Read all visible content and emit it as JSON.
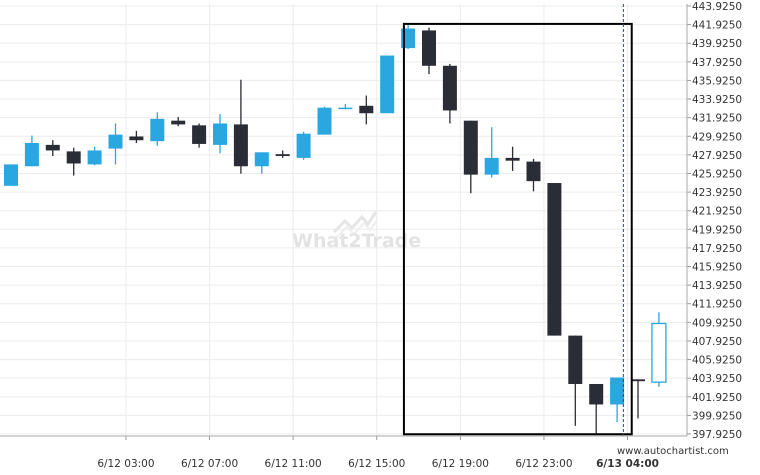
{
  "watermark": {
    "text": "What2Trade"
  },
  "credit": "www.autochartist.com",
  "colors": {
    "up": "#2aa7e0",
    "down": "#2b2d36",
    "box": "#000000",
    "grid": "#ececec",
    "dashed": "#2b4b6b"
  },
  "chart_data": {
    "type": "candlestick",
    "ylim": [
      397.925,
      443.925
    ],
    "y_ticks": [
      "443.9250",
      "441.9250",
      "439.9250",
      "437.9250",
      "435.9250",
      "433.9250",
      "431.9250",
      "429.9250",
      "427.9250",
      "425.9250",
      "423.9250",
      "421.9250",
      "419.9250",
      "417.9250",
      "415.9250",
      "413.9250",
      "411.9250",
      "409.9250",
      "407.9250",
      "405.9250",
      "403.9250",
      "401.9250",
      "399.9250",
      "397.9250"
    ],
    "x_ticks": [
      {
        "label": "6/12 03:00",
        "index": 5.5,
        "bold": false
      },
      {
        "label": "6/12 07:00",
        "index": 9.5,
        "bold": false
      },
      {
        "label": "6/12 11:00",
        "index": 13.5,
        "bold": false
      },
      {
        "label": "6/12 15:00",
        "index": 17.5,
        "bold": false
      },
      {
        "label": "6/12 19:00",
        "index": 21.5,
        "bold": false
      },
      {
        "label": "6/12 23:00",
        "index": 25.5,
        "bold": false
      },
      {
        "label": "6/13 04:00",
        "index": 29.5,
        "bold": true
      }
    ],
    "candles": [
      {
        "o": 424.6,
        "h": 426.9,
        "l": 424.6,
        "c": 426.9
      },
      {
        "o": 426.7,
        "h": 430.0,
        "l": 426.7,
        "c": 429.2
      },
      {
        "o": 429.0,
        "h": 429.5,
        "l": 427.8,
        "c": 428.4
      },
      {
        "o": 428.3,
        "h": 428.7,
        "l": 425.7,
        "c": 427.0
      },
      {
        "o": 426.9,
        "h": 428.8,
        "l": 426.8,
        "c": 428.4
      },
      {
        "o": 428.6,
        "h": 431.3,
        "l": 426.9,
        "c": 430.1
      },
      {
        "o": 429.9,
        "h": 430.5,
        "l": 429.2,
        "c": 429.5
      },
      {
        "o": 429.4,
        "h": 432.5,
        "l": 428.9,
        "c": 431.8
      },
      {
        "o": 431.6,
        "h": 432.0,
        "l": 431.0,
        "c": 431.2
      },
      {
        "o": 431.1,
        "h": 431.3,
        "l": 428.7,
        "c": 429.1
      },
      {
        "o": 429.0,
        "h": 432.3,
        "l": 428.1,
        "c": 431.3
      },
      {
        "o": 431.2,
        "h": 436.0,
        "l": 425.9,
        "c": 426.7
      },
      {
        "o": 426.7,
        "h": 428.2,
        "l": 425.9,
        "c": 428.2
      },
      {
        "o": 428.0,
        "h": 428.4,
        "l": 427.6,
        "c": 427.8
      },
      {
        "o": 427.6,
        "h": 430.4,
        "l": 427.4,
        "c": 430.2
      },
      {
        "o": 430.1,
        "h": 433.1,
        "l": 430.1,
        "c": 433.0
      },
      {
        "o": 432.9,
        "h": 433.4,
        "l": 432.8,
        "c": 433.0
      },
      {
        "o": 433.2,
        "h": 434.3,
        "l": 431.2,
        "c": 432.4
      },
      {
        "o": 432.4,
        "h": 438.6,
        "l": 432.4,
        "c": 438.6
      },
      {
        "o": 439.4,
        "h": 441.9,
        "l": 439.3,
        "c": 441.5
      },
      {
        "o": 441.3,
        "h": 441.6,
        "l": 436.6,
        "c": 437.5
      },
      {
        "o": 437.5,
        "h": 437.7,
        "l": 431.3,
        "c": 432.7
      },
      {
        "o": 431.6,
        "h": 431.6,
        "l": 423.8,
        "c": 425.8
      },
      {
        "o": 425.8,
        "h": 430.9,
        "l": 425.5,
        "c": 427.6
      },
      {
        "o": 427.6,
        "h": 428.8,
        "l": 426.2,
        "c": 427.3
      },
      {
        "o": 427.2,
        "h": 427.5,
        "l": 424.0,
        "c": 425.1
      },
      {
        "o": 424.9,
        "h": 424.9,
        "l": 408.5,
        "c": 408.5
      },
      {
        "o": 408.5,
        "h": 408.5,
        "l": 398.8,
        "c": 403.3
      },
      {
        "o": 403.3,
        "h": 403.3,
        "l": 398.0,
        "c": 401.1
      },
      {
        "o": 401.1,
        "h": 404.0,
        "l": 399.2,
        "c": 404.0
      },
      {
        "o": 403.8,
        "h": 403.8,
        "l": 399.6,
        "c": 403.6
      },
      {
        "o": 403.5,
        "h": 411.0,
        "l": 403.0,
        "c": 409.8,
        "hollow": true
      }
    ],
    "pattern_box": {
      "from_index": 18.8,
      "to_index": 29.7,
      "top": 442.0,
      "bottom": 397.9
    },
    "dashed_line_index": 29.3
  }
}
